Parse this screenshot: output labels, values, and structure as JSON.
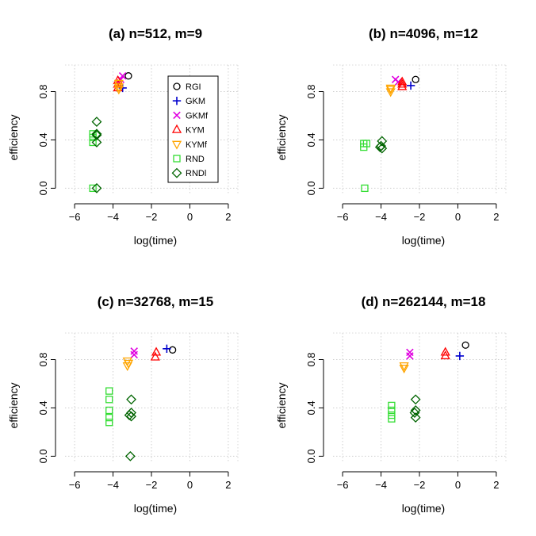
{
  "legend": [
    {
      "name": "RGI",
      "color": "#000000",
      "marker": "circle"
    },
    {
      "name": "GKM",
      "color": "#0000CD",
      "marker": "plus"
    },
    {
      "name": "GKMf",
      "color": "#E000E0",
      "marker": "cross"
    },
    {
      "name": "KYM",
      "color": "#FF0000",
      "marker": "triangle-up"
    },
    {
      "name": "KYMf",
      "color": "#FFA500",
      "marker": "triangle-down"
    },
    {
      "name": "RND",
      "color": "#33DD33",
      "marker": "square"
    },
    {
      "name": "RNDl",
      "color": "#006400",
      "marker": "diamond"
    }
  ],
  "chart_data": [
    {
      "type": "scatter",
      "title": "(a) n=512, m=9",
      "xlabel": "log(time)",
      "ylabel": "efficiency",
      "xlim": [
        -6.5,
        2.5
      ],
      "ylim": [
        -0.05,
        1.02
      ],
      "xticks": [
        -6,
        -4,
        -2,
        0,
        2
      ],
      "yticks": [
        0.0,
        0.4,
        0.8
      ],
      "grid": true,
      "legend_position": "top-right",
      "series": [
        {
          "name": "RGI",
          "points": [
            [
              -3.2,
              0.93
            ]
          ]
        },
        {
          "name": "GKM",
          "points": [
            [
              -3.5,
              0.83
            ]
          ]
        },
        {
          "name": "GKMf",
          "points": [
            [
              -3.5,
              0.93
            ],
            [
              -3.6,
              0.9
            ]
          ]
        },
        {
          "name": "KYM",
          "points": [
            [
              -3.75,
              0.83
            ],
            [
              -3.75,
              0.86
            ],
            [
              -3.75,
              0.89
            ]
          ]
        },
        {
          "name": "KYMf",
          "points": [
            [
              -3.7,
              0.84
            ],
            [
              -3.7,
              0.87
            ],
            [
              -3.7,
              0.82
            ]
          ]
        },
        {
          "name": "RND",
          "points": [
            [
              -5.05,
              0.45
            ],
            [
              -5.05,
              0.42
            ],
            [
              -5.05,
              0.38
            ],
            [
              -5.05,
              0.0
            ]
          ]
        },
        {
          "name": "RNDl",
          "points": [
            [
              -4.85,
              0.55
            ],
            [
              -4.85,
              0.45
            ],
            [
              -4.85,
              0.44
            ],
            [
              -4.85,
              0.38
            ],
            [
              -4.85,
              0.0
            ]
          ]
        }
      ]
    },
    {
      "type": "scatter",
      "title": "(b) n=4096, m=12",
      "xlabel": "log(time)",
      "ylabel": "efficiency",
      "xlim": [
        -6.5,
        2.5
      ],
      "ylim": [
        -0.05,
        1.02
      ],
      "xticks": [
        -6,
        -4,
        -2,
        0,
        2
      ],
      "yticks": [
        0.0,
        0.4,
        0.8
      ],
      "grid": true,
      "series": [
        {
          "name": "RGI",
          "points": [
            [
              -2.2,
              0.9
            ]
          ]
        },
        {
          "name": "GKM",
          "points": [
            [
              -2.45,
              0.85
            ]
          ]
        },
        {
          "name": "GKMf",
          "points": [
            [
              -3.25,
              0.9
            ],
            [
              -3.1,
              0.88
            ]
          ]
        },
        {
          "name": "KYM",
          "points": [
            [
              -2.9,
              0.88
            ],
            [
              -2.9,
              0.86
            ],
            [
              -2.9,
              0.84
            ]
          ]
        },
        {
          "name": "KYMf",
          "points": [
            [
              -3.5,
              0.83
            ],
            [
              -3.5,
              0.8
            ],
            [
              -3.5,
              0.82
            ]
          ]
        },
        {
          "name": "RND",
          "points": [
            [
              -4.9,
              0.37
            ],
            [
              -4.75,
              0.37
            ],
            [
              -4.9,
              0.34
            ],
            [
              -4.85,
              0.0
            ]
          ]
        },
        {
          "name": "RNDl",
          "points": [
            [
              -3.95,
              0.39
            ],
            [
              -4.0,
              0.35
            ],
            [
              -3.95,
              0.33
            ],
            [
              -4.05,
              0.34
            ]
          ]
        }
      ]
    },
    {
      "type": "scatter",
      "title": "(c) n=32768, m=15",
      "xlabel": "log(time)",
      "ylabel": "efficiency",
      "xlim": [
        -6.5,
        2.5
      ],
      "ylim": [
        -0.05,
        1.02
      ],
      "xticks": [
        -6,
        -4,
        -2,
        0,
        2
      ],
      "yticks": [
        0.0,
        0.4,
        0.8
      ],
      "grid": true,
      "series": [
        {
          "name": "RGI",
          "points": [
            [
              -0.9,
              0.88
            ]
          ]
        },
        {
          "name": "GKM",
          "points": [
            [
              -1.2,
              0.89
            ]
          ]
        },
        {
          "name": "GKMf",
          "points": [
            [
              -2.9,
              0.87
            ],
            [
              -2.9,
              0.84
            ]
          ]
        },
        {
          "name": "KYM",
          "points": [
            [
              -1.75,
              0.86
            ],
            [
              -1.8,
              0.82
            ]
          ]
        },
        {
          "name": "KYMf",
          "points": [
            [
              -3.25,
              0.79
            ],
            [
              -3.2,
              0.77
            ],
            [
              -3.25,
              0.75
            ]
          ]
        },
        {
          "name": "RND",
          "points": [
            [
              -4.2,
              0.54
            ],
            [
              -4.2,
              0.47
            ],
            [
              -4.2,
              0.38
            ],
            [
              -4.2,
              0.32
            ],
            [
              -4.2,
              0.28
            ]
          ]
        },
        {
          "name": "RNDl",
          "points": [
            [
              -3.05,
              0.47
            ],
            [
              -3.05,
              0.36
            ],
            [
              -3.15,
              0.34
            ],
            [
              -3.05,
              0.33
            ],
            [
              -3.1,
              0.0
            ]
          ]
        }
      ]
    },
    {
      "type": "scatter",
      "title": "(d) n=262144, m=18",
      "xlabel": "log(time)",
      "ylabel": "efficiency",
      "xlim": [
        -6.5,
        2.5
      ],
      "ylim": [
        -0.05,
        1.02
      ],
      "xticks": [
        -6,
        -4,
        -2,
        0,
        2
      ],
      "yticks": [
        0.0,
        0.4,
        0.8
      ],
      "grid": true,
      "series": [
        {
          "name": "RGI",
          "points": [
            [
              0.4,
              0.92
            ]
          ]
        },
        {
          "name": "GKM",
          "points": [
            [
              0.1,
              0.83
            ]
          ]
        },
        {
          "name": "GKMf",
          "points": [
            [
              -2.5,
              0.86
            ],
            [
              -2.5,
              0.83
            ]
          ]
        },
        {
          "name": "KYM",
          "points": [
            [
              -0.65,
              0.86
            ],
            [
              -0.65,
              0.83
            ]
          ]
        },
        {
          "name": "KYMf",
          "points": [
            [
              -2.8,
              0.75
            ],
            [
              -2.8,
              0.73
            ]
          ]
        },
        {
          "name": "RND",
          "points": [
            [
              -3.45,
              0.42
            ],
            [
              -3.45,
              0.38
            ],
            [
              -3.45,
              0.34
            ],
            [
              -3.45,
              0.31
            ]
          ]
        },
        {
          "name": "RNDl",
          "points": [
            [
              -2.2,
              0.47
            ],
            [
              -2.2,
              0.38
            ],
            [
              -2.25,
              0.36
            ],
            [
              -2.2,
              0.32
            ]
          ]
        }
      ]
    }
  ]
}
